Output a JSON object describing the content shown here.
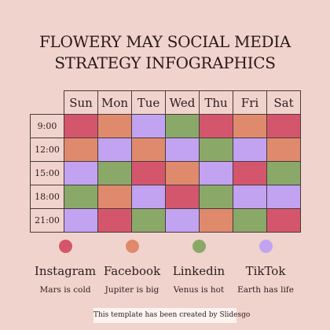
{
  "title": {
    "line1": "FLOWERY MAY SOCIAL MEDIA",
    "line2": "STRATEGY INFOGRAPHICS"
  },
  "colors": {
    "instagram": "#d4566d",
    "facebook": "#df8a6c",
    "linkedin": "#8aa868",
    "tiktok": "#c1a3f2"
  },
  "days": [
    "Sun",
    "Mon",
    "Tue",
    "Wed",
    "Thu",
    "Fri",
    "Sat"
  ],
  "rows": [
    {
      "time": "9:00",
      "cells": [
        "instagram",
        "facebook",
        "tiktok",
        "linkedin",
        "instagram",
        "facebook",
        "instagram"
      ]
    },
    {
      "time": "12:00",
      "cells": [
        "facebook",
        "tiktok",
        "facebook",
        "tiktok",
        "linkedin",
        "tiktok",
        "facebook"
      ]
    },
    {
      "time": "15:00",
      "cells": [
        "tiktok",
        "linkedin",
        "instagram",
        "facebook",
        "tiktok",
        "instagram",
        "linkedin"
      ]
    },
    {
      "time": "18:00",
      "cells": [
        "linkedin",
        "facebook",
        "tiktok",
        "instagram",
        "linkedin",
        "tiktok",
        "tiktok"
      ]
    },
    {
      "time": "21:00",
      "cells": [
        "tiktok",
        "instagram",
        "linkedin",
        "tiktok",
        "facebook",
        "linkedin",
        "instagram"
      ]
    }
  ],
  "legend": [
    {
      "key": "instagram",
      "name": "Instagram",
      "desc": "Mars is cold"
    },
    {
      "key": "facebook",
      "name": "Facebook",
      "desc": "Jupiter is big"
    },
    {
      "key": "linkedin",
      "name": "Linkedin",
      "desc": "Venus is hot"
    },
    {
      "key": "tiktok",
      "name": "TikTok",
      "desc": "Earth has life"
    }
  ],
  "credit": "This template has been created by Slidesgo"
}
